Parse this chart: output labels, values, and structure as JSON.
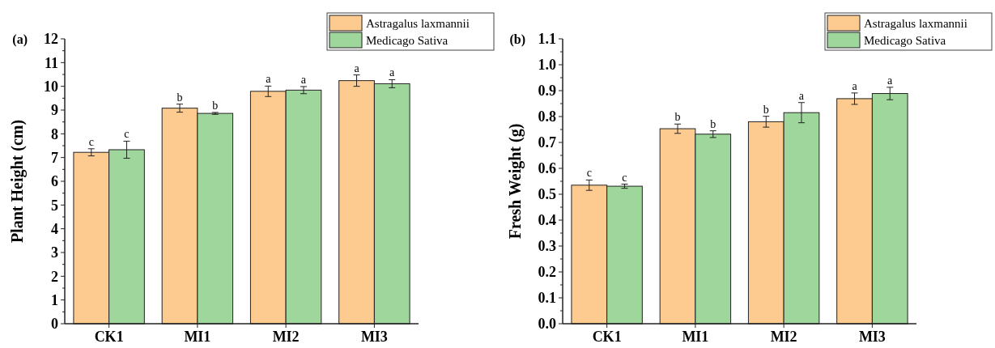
{
  "chart_data": [
    {
      "type": "bar",
      "title": "(a)",
      "ylabel": "Plant Height (cm)",
      "categories": [
        "CK1",
        "MI1",
        "MI2",
        "MI3"
      ],
      "ylim": [
        0,
        12
      ],
      "yticks": [
        0,
        1,
        2,
        3,
        4,
        5,
        6,
        7,
        8,
        9,
        10,
        11,
        12
      ],
      "legend": "top right",
      "series": [
        {
          "name": "Astragalus laxmannii",
          "color": "#fdcb8f",
          "values": [
            7.22,
            9.08,
            9.79,
            10.24
          ],
          "errors": [
            0.15,
            0.17,
            0.22,
            0.24
          ],
          "value_labels": [
            "c",
            "b",
            "a",
            "a"
          ]
        },
        {
          "name": "Medicago Sativa",
          "color": "#9ed69b",
          "values": [
            7.33,
            8.86,
            9.84,
            10.11
          ],
          "errors": [
            0.36,
            0.04,
            0.15,
            0.17
          ],
          "value_labels": [
            "c",
            "b",
            "a",
            "a"
          ]
        }
      ]
    },
    {
      "type": "bar",
      "title": "(b)",
      "ylabel": "Fresh Weight (g)",
      "categories": [
        "CK1",
        "MI1",
        "MI2",
        "MI3"
      ],
      "ylim": [
        0,
        1.1
      ],
      "yticks": [
        {
          "value": 0,
          "label": "0.0"
        },
        {
          "value": 0.1,
          "label": "0.1"
        },
        {
          "value": 0.2,
          "label": "0.2"
        },
        {
          "value": 0.3,
          "label": "0.3"
        },
        {
          "value": 0.4,
          "label": "0.4"
        },
        {
          "value": 0.5,
          "label": "0.5"
        },
        {
          "value": 0.6,
          "label": "0.6"
        },
        {
          "value": 0.7,
          "label": "0.7"
        },
        {
          "value": 0.8,
          "label": "0.8"
        },
        {
          "value": 0.9,
          "label": "0.9"
        },
        {
          "value": 1,
          "label": "1.0"
        },
        {
          "value": 1.1,
          "label": "1.1"
        }
      ],
      "legend": "top right",
      "series": [
        {
          "name": "Astragalus laxmannii",
          "color": "#fdcb8f",
          "values": [
            0.535,
            0.753,
            0.78,
            0.869
          ],
          "errors": [
            0.02,
            0.018,
            0.021,
            0.022
          ],
          "value_labels": [
            "c",
            "b",
            "b",
            "a"
          ]
        },
        {
          "name": "Medicago Sativa",
          "color": "#9ed69b",
          "values": [
            0.531,
            0.732,
            0.815,
            0.889
          ],
          "errors": [
            0.008,
            0.013,
            0.039,
            0.024
          ],
          "value_labels": [
            "c",
            "b",
            "a",
            "a"
          ]
        }
      ]
    }
  ]
}
